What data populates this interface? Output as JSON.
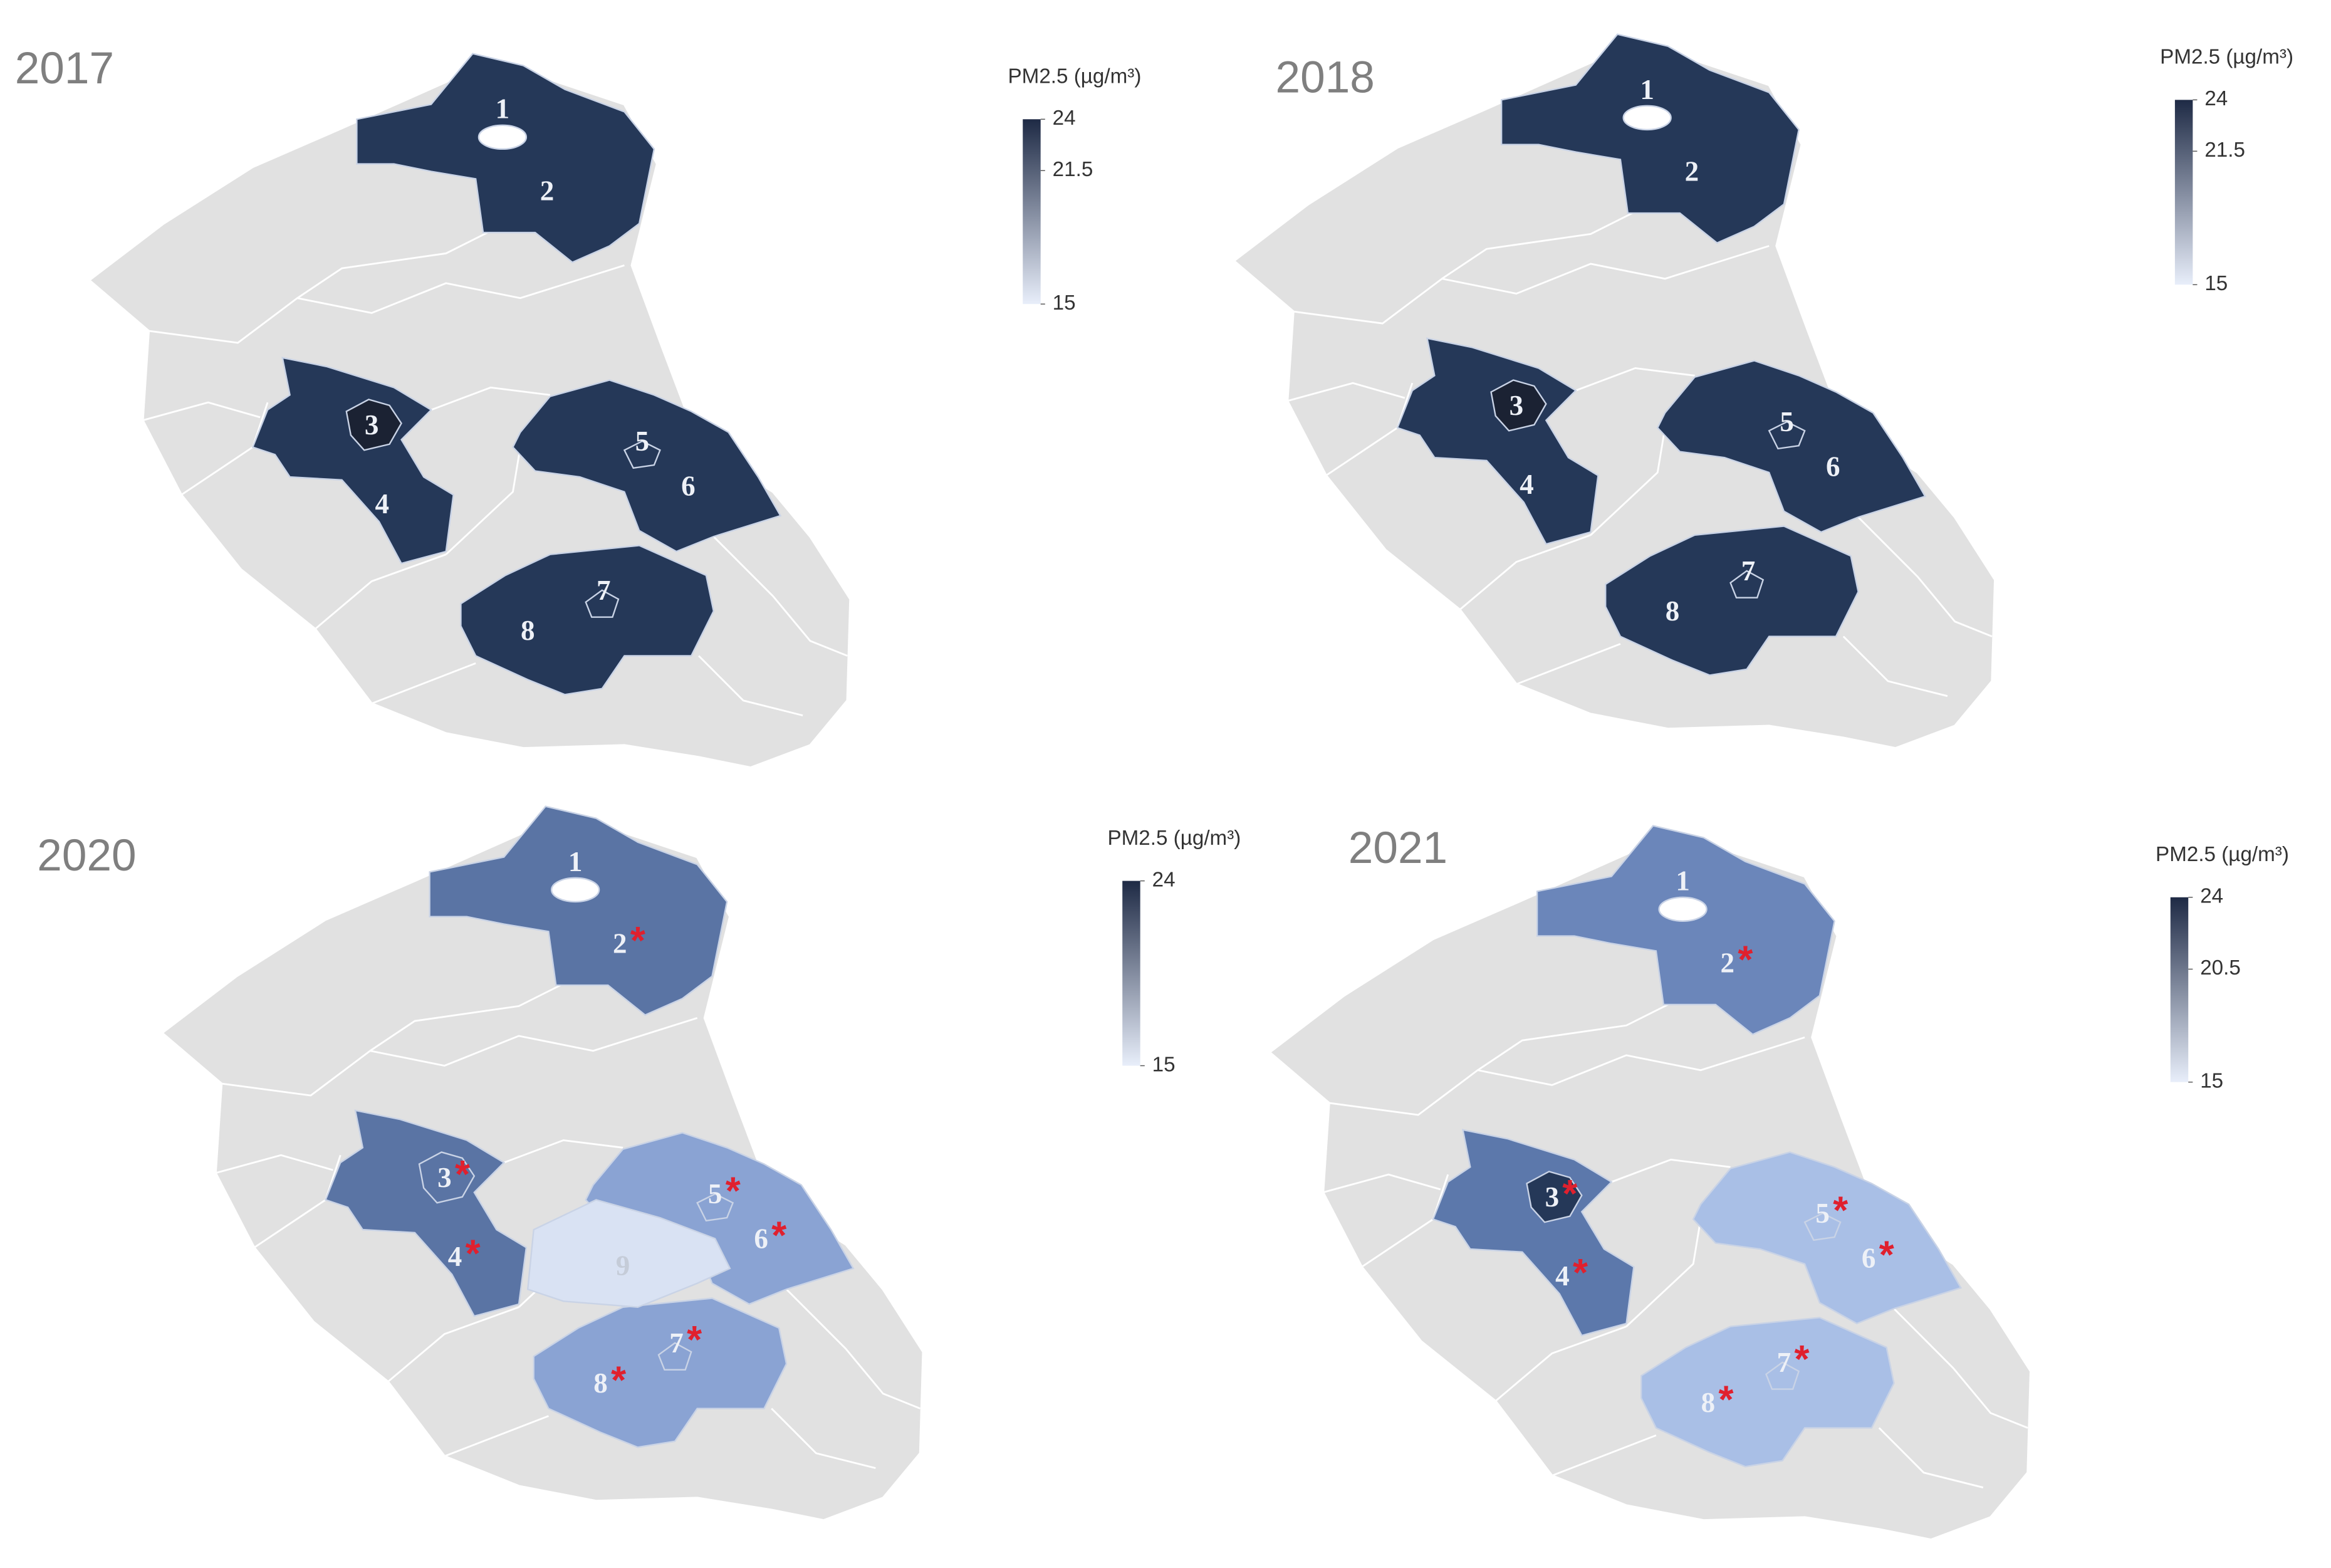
{
  "panels": [
    {
      "year": "2017",
      "legend": {
        "title": "PM2.5 (µg/m³)",
        "ticks": [
          24,
          21.5,
          15
        ],
        "colors": [
          "#1e2a45",
          "#e8eefa"
        ]
      },
      "regions": [
        {
          "label": "1",
          "color": "#ffffff"
        },
        {
          "label": "2",
          "color": "#253858"
        },
        {
          "label": "3",
          "color": "#1b2233"
        },
        {
          "label": "4",
          "color": "#253858"
        },
        {
          "label": "5",
          "color": "#253858"
        },
        {
          "label": "6",
          "color": "#253858"
        },
        {
          "label": "7",
          "color": "#253858"
        },
        {
          "label": "8",
          "color": "#253858"
        }
      ]
    },
    {
      "year": "2018",
      "legend": {
        "title": "PM2.5 (µg/m³)",
        "ticks": [
          24,
          21.5,
          15
        ],
        "colors": [
          "#1e2a45",
          "#e8eefa"
        ]
      },
      "regions": [
        {
          "label": "1",
          "color": "#ffffff"
        },
        {
          "label": "2",
          "color": "#253858"
        },
        {
          "label": "3",
          "color": "#1b2233"
        },
        {
          "label": "4",
          "color": "#253858"
        },
        {
          "label": "5",
          "color": "#253858"
        },
        {
          "label": "6",
          "color": "#253858"
        },
        {
          "label": "7",
          "color": "#253858"
        },
        {
          "label": "8",
          "color": "#253858"
        }
      ]
    },
    {
      "year": "2020",
      "legend": {
        "title": "PM2.5 (µg/m³)",
        "ticks": [
          24,
          15
        ],
        "colors": [
          "#1e2a45",
          "#e8eefa"
        ]
      },
      "regions": [
        {
          "label": "1",
          "color": "#ffffff"
        },
        {
          "label": "2",
          "color": "#5a74a4",
          "marker": "*"
        },
        {
          "label": "3",
          "color": "#5a74a4",
          "marker": "*"
        },
        {
          "label": "4",
          "color": "#5a74a4",
          "marker": "*"
        },
        {
          "label": "5",
          "color": "#8aa3d3",
          "marker": "*"
        },
        {
          "label": "6",
          "color": "#8aa3d3",
          "marker": "*"
        },
        {
          "label": "7",
          "color": "#8aa3d3",
          "marker": "*"
        },
        {
          "label": "8",
          "color": "#8aa3d3",
          "marker": "*"
        },
        {
          "label": "9",
          "color": "#d9e2f3"
        }
      ]
    },
    {
      "year": "2021",
      "legend": {
        "title": "PM2.5 (µg/m³)",
        "ticks": [
          24,
          20.5,
          15
        ],
        "colors": [
          "#1e2a45",
          "#e8eefa"
        ]
      },
      "regions": [
        {
          "label": "1",
          "color": "#ffffff"
        },
        {
          "label": "2",
          "color": "#6b86ba",
          "marker": "*"
        },
        {
          "label": "3",
          "color": "#253858",
          "marker": "*"
        },
        {
          "label": "4",
          "color": "#5c78ab",
          "marker": "*"
        },
        {
          "label": "5",
          "color": "#a9bfe6",
          "marker": "*"
        },
        {
          "label": "6",
          "color": "#a9bfe6",
          "marker": "*"
        },
        {
          "label": "7",
          "color": "#a9bfe6",
          "marker": "*"
        },
        {
          "label": "8",
          "color": "#a9bfe6",
          "marker": "*"
        }
      ]
    }
  ]
}
